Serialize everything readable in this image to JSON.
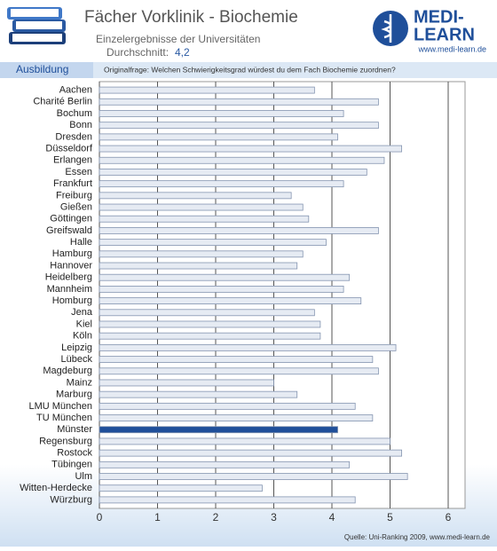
{
  "header": {
    "title": "Fächer Vorklinik - Biochemie",
    "subtitle": "Einzelergebnisse der Universitäten",
    "average_label": "Durchschnitt:",
    "average_value": "4,2"
  },
  "logo": {
    "lines": [
      "MEDI-",
      "LEARN"
    ],
    "url": "www.medi-learn.de"
  },
  "section": "Ausbildung",
  "source": "Quelle: Uni-Ranking 2009, www.medi-learn.de",
  "chart_data": {
    "type": "hbar",
    "question": "Originalfrage: Welchen Schwierigkeitsgrad würdest du dem Fach Biochemie zuordnen?",
    "categories": [
      "Aachen",
      "Charité Berlin",
      "Bochum",
      "Bonn",
      "Dresden",
      "Düsseldorf",
      "Erlangen",
      "Essen",
      "Frankfurt",
      "Freiburg",
      "Gießen",
      "Göttingen",
      "Greifswald",
      "Halle",
      "Hamburg",
      "Hannover",
      "Heidelberg",
      "Mannheim",
      "Homburg",
      "Jena",
      "Kiel",
      "Köln",
      "Leipzig",
      "Lübeck",
      "Magdeburg",
      "Mainz",
      "Marburg",
      "LMU München",
      "TU München",
      "Münster",
      "Regensburg",
      "Rostock",
      "Tübingen",
      "Ulm",
      "Witten-Herdecke",
      "Würzburg"
    ],
    "values": [
      3.7,
      4.8,
      4.2,
      4.8,
      4.1,
      5.2,
      4.9,
      4.6,
      4.2,
      3.3,
      3.5,
      3.6,
      4.8,
      3.9,
      3.5,
      3.4,
      4.3,
      4.2,
      4.5,
      3.7,
      3.8,
      3.8,
      5.1,
      4.7,
      4.8,
      3.0,
      3.4,
      4.4,
      4.7,
      4.1,
      5.0,
      5.2,
      4.3,
      5.3,
      2.8,
      4.4
    ],
    "bar_colors": [
      "#e6ebf3",
      "#e6ebf3",
      "#e6ebf3",
      "#e6ebf3",
      "#e6ebf3",
      "#e6ebf3",
      "#e6ebf3",
      "#e6ebf3",
      "#e6ebf3",
      "#e6ebf3",
      "#e6ebf3",
      "#e6ebf3",
      "#e6ebf3",
      "#e6ebf3",
      "#e6ebf3",
      "#e6ebf3",
      "#e6ebf3",
      "#e6ebf3",
      "#e6ebf3",
      "#e6ebf3",
      "#e6ebf3",
      "#e6ebf3",
      "#e6ebf3",
      "#e6ebf3",
      "#e6ebf3",
      "#e6ebf3",
      "#e6ebf3",
      "#e6ebf3",
      "#e6ebf3",
      "#1f4f9a",
      "#e6ebf3",
      "#e6ebf3",
      "#e6ebf3",
      "#e6ebf3",
      "#e6ebf3",
      "#e6ebf3"
    ],
    "xlim": [
      0,
      6
    ],
    "xticks": [
      0,
      1,
      2,
      3,
      4,
      5,
      6
    ],
    "grid": true
  }
}
